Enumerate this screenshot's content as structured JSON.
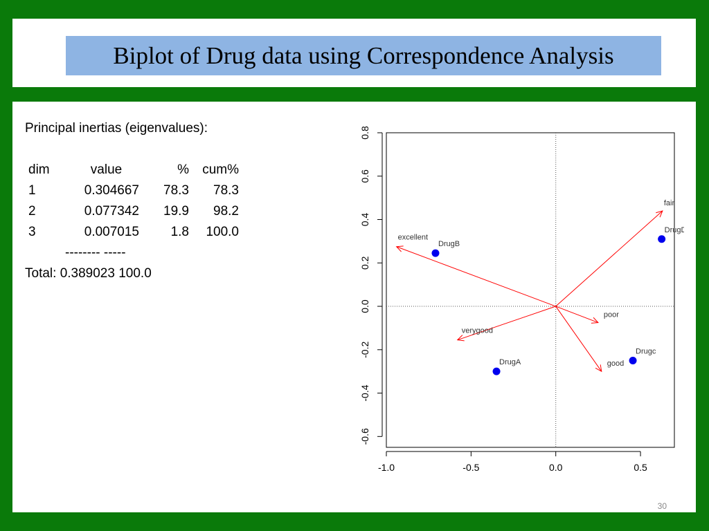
{
  "title": "Biplot of Drug data using  Correspondence Analysis",
  "inertia": {
    "heading": "Principal inertias (eigenvalues):",
    "headers": {
      "dim": "dim",
      "value": "value",
      "pct": "%",
      "cum": "cum%"
    },
    "rows": [
      {
        "dim": "1",
        "value": "0.304667",
        "pct": "78.3",
        "cum": "78.3"
      },
      {
        "dim": "2",
        "value": "0.077342",
        "pct": "19.9",
        "cum": "98.2"
      },
      {
        "dim": "3",
        "value": "0.007015",
        "pct": "1.8",
        "cum": "100.0"
      }
    ],
    "separator": "-------- -----",
    "total": "Total: 0.389023 100.0"
  },
  "page_number": "30",
  "colors": {
    "background": "#0a7a0a",
    "title_box": "#8eb4e3",
    "points": "#0000ee",
    "arrows": "#ff0000"
  },
  "chart_data": {
    "type": "scatter",
    "xlim": [
      -1.0,
      0.7
    ],
    "ylim": [
      -0.65,
      0.8
    ],
    "x_ticks": [
      -1.0,
      -0.5,
      0.0,
      0.5
    ],
    "x_tick_labels": [
      "-1.0",
      "-0.5",
      "0.0",
      "0.5"
    ],
    "y_ticks": [
      -0.6,
      -0.4,
      -0.2,
      0.0,
      0.2,
      0.4,
      0.6,
      0.8
    ],
    "y_tick_labels": [
      "-0.6",
      "-0.4",
      "-0.2",
      "0.0",
      "0.2",
      "0.4",
      "0.6",
      "0.8"
    ],
    "reference_lines": {
      "x": 0,
      "y": 0
    },
    "points": [
      {
        "label": "DrugA",
        "x": -0.35,
        "y": -0.3
      },
      {
        "label": "DrugB",
        "x": -0.71,
        "y": 0.245
      },
      {
        "label": "Drugc",
        "x": 0.455,
        "y": -0.25
      },
      {
        "label": "DrugD",
        "x": 0.625,
        "y": 0.31
      }
    ],
    "arrows": [
      {
        "label": "excellent",
        "x": -0.94,
        "y": 0.275
      },
      {
        "label": "fair",
        "x": 0.63,
        "y": 0.44
      },
      {
        "label": "poor",
        "x": 0.25,
        "y": -0.075
      },
      {
        "label": "verygood",
        "x": -0.58,
        "y": -0.155
      },
      {
        "label": "good",
        "x": 0.27,
        "y": -0.3
      }
    ]
  }
}
